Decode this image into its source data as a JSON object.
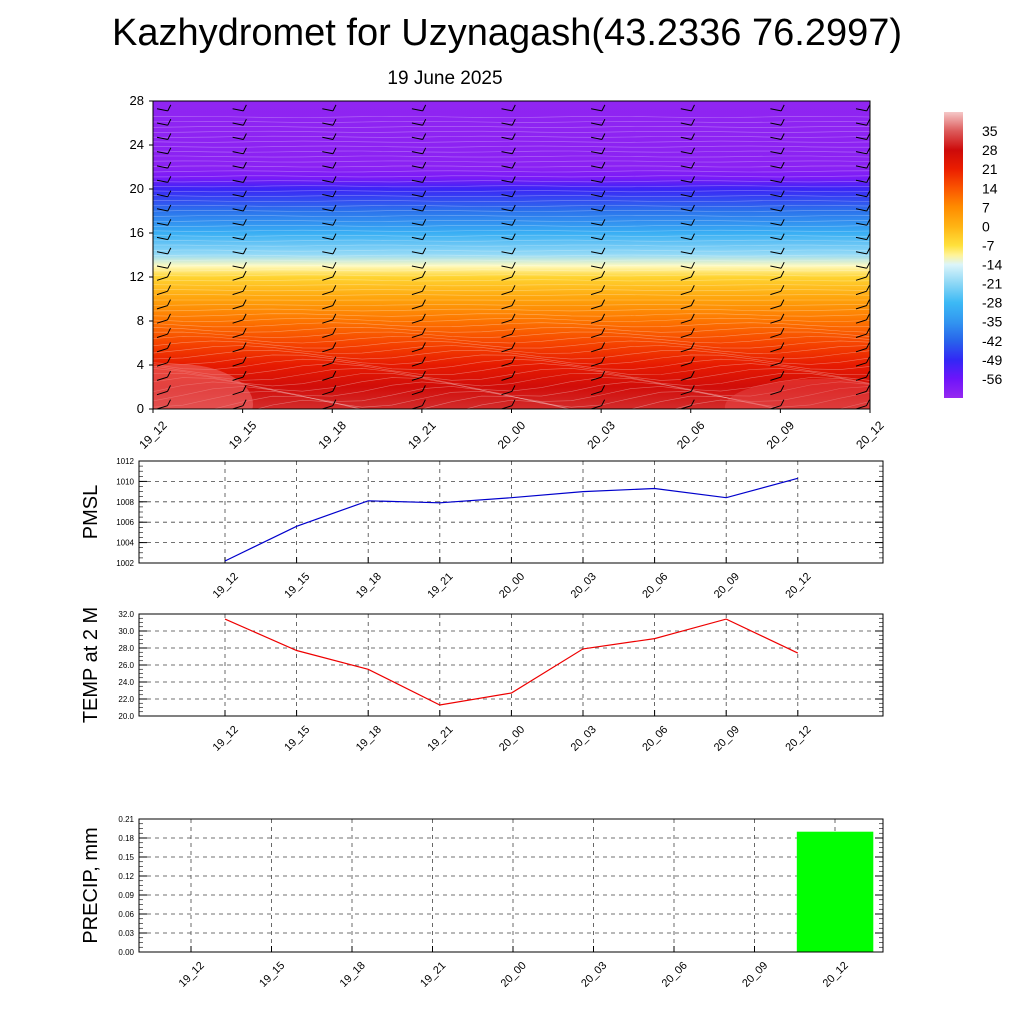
{
  "title": "Kazhydromet for Uzynagash(43.2336 76.2997)",
  "subtitle": "19 June 2025",
  "chart_data": [
    {
      "type": "heatmap",
      "name": "vertical cross-section",
      "x": [
        "19_12",
        "19_15",
        "19_18",
        "19_21",
        "20_00",
        "20_03",
        "20_06",
        "20_09",
        "20_12"
      ],
      "y_ticks": [
        0,
        4,
        8,
        12,
        16,
        20,
        24,
        28
      ],
      "ylim": [
        0,
        28
      ],
      "colorbar_ticks": [
        35,
        28,
        21,
        14,
        7,
        0,
        -7,
        -14,
        -21,
        -28,
        -35,
        -42,
        -49,
        -56
      ],
      "colorbar_range": [
        -63,
        42
      ],
      "levels": [
        {
          "y": 0,
          "value": 31
        },
        {
          "y": 2,
          "value": 27
        },
        {
          "y": 4,
          "value": 22
        },
        {
          "y": 6,
          "value": 16
        },
        {
          "y": 8,
          "value": 10
        },
        {
          "y": 10,
          "value": 3
        },
        {
          "y": 12,
          "value": -5
        },
        {
          "y": 13,
          "value": -12
        },
        {
          "y": 14,
          "value": -20
        },
        {
          "y": 16,
          "value": -30
        },
        {
          "y": 18,
          "value": -40
        },
        {
          "y": 20,
          "value": -50
        },
        {
          "y": 21,
          "value": -58
        },
        {
          "y": 22,
          "value": -61
        },
        {
          "y": 28,
          "value": -62
        }
      ],
      "wind_barbs": true
    },
    {
      "type": "line",
      "ylabel": "PMSL",
      "x": [
        "19_12",
        "19_15",
        "19_18",
        "19_21",
        "20_00",
        "20_03",
        "20_06",
        "20_09",
        "20_12"
      ],
      "values": [
        1002.2,
        1005.6,
        1008.1,
        1007.9,
        1008.4,
        1009.0,
        1009.3,
        1008.4,
        1010.3
      ],
      "ylim": [
        1002,
        1012
      ],
      "y_ticks": [
        "1002",
        "1004",
        "1006",
        "1008",
        "1010",
        "1012"
      ],
      "color": "#0000cc",
      "grid": true
    },
    {
      "type": "line",
      "ylabel": "TEMP at 2 M",
      "x": [
        "19_12",
        "19_15",
        "19_18",
        "19_21",
        "20_00",
        "20_03",
        "20_06",
        "20_09",
        "20_12"
      ],
      "values": [
        31.4,
        27.7,
        25.5,
        21.3,
        22.7,
        27.9,
        29.1,
        31.4,
        27.4
      ],
      "ylim": [
        20,
        32
      ],
      "y_ticks": [
        "20.0",
        "22.0",
        "24.0",
        "26.0",
        "28.0",
        "30.0",
        "32.0"
      ],
      "color": "#ee0000",
      "grid": true
    },
    {
      "type": "bar",
      "ylabel": "PRECIP, mm",
      "x": [
        "19_12",
        "19_15",
        "19_18",
        "19_21",
        "20_00",
        "20_03",
        "20_06",
        "20_09",
        "20_12"
      ],
      "values": [
        0,
        0,
        0,
        0,
        0,
        0,
        0,
        0,
        0.19
      ],
      "ylim": [
        0,
        0.21
      ],
      "y_ticks": [
        "0.00",
        "0.03",
        "0.06",
        "0.09",
        "0.12",
        "0.15",
        "0.18",
        "0.21"
      ],
      "color": "#00ff00",
      "grid": true
    }
  ]
}
